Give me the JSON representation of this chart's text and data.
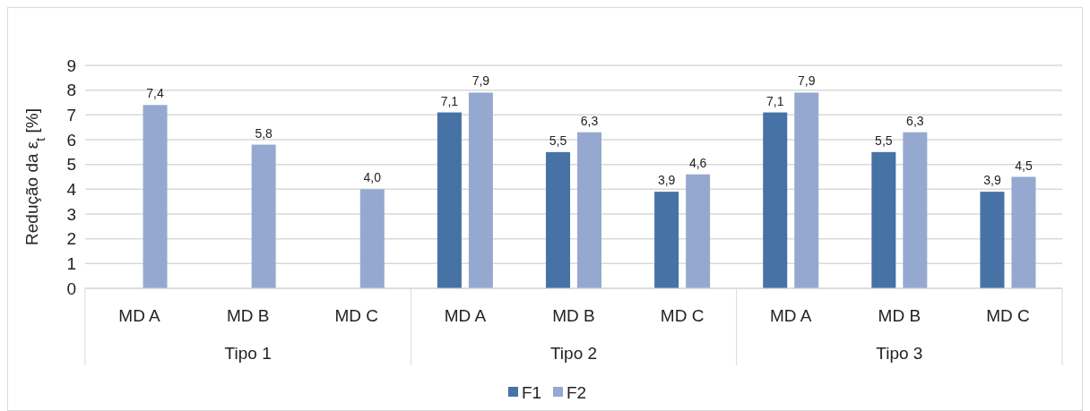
{
  "chart_data": {
    "type": "bar",
    "ylabel": "Redução da ε$_{t}$ [%]",
    "categories": [
      "MD A",
      "MD B",
      "MD C",
      "MD A",
      "MD B",
      "MD C",
      "MD A",
      "MD B",
      "MD C"
    ],
    "series": [
      {
        "name": "F1",
        "color": "#4672a6",
        "values": [
          null,
          null,
          null,
          7.1,
          5.5,
          3.9,
          7.1,
          5.5,
          3.9
        ],
        "value_labels": [
          null,
          null,
          null,
          "7,1",
          "5,5",
          "3,9",
          "7,1",
          "5,5",
          "3,9"
        ]
      },
      {
        "name": "F2",
        "color": "#95a9d0",
        "values": [
          7.4,
          5.8,
          4.0,
          7.9,
          6.3,
          4.6,
          7.9,
          6.3,
          4.5
        ],
        "value_labels": [
          "7,4",
          "5,8",
          "4,0",
          "7,9",
          "6,3",
          "4,6",
          "7,9",
          "6,3",
          "4,5"
        ]
      }
    ],
    "annotations": [
      "Tipo 1",
      "Tipo 2",
      "Tipo 3"
    ],
    "ylim": [
      0,
      9
    ],
    "yticks": [
      0,
      1,
      2,
      3,
      4,
      5,
      6,
      7,
      8,
      9
    ],
    "grid": "y",
    "legend": "bottom"
  }
}
